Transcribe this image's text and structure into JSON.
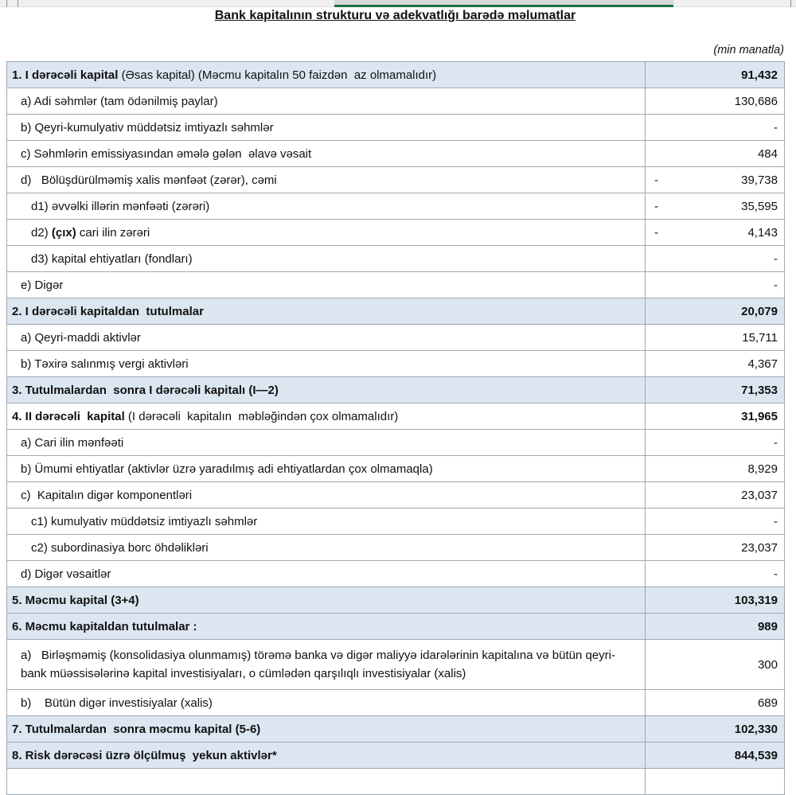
{
  "title": "Bank kapitalının strukturu və adekvatlığı barədə məlumatlar",
  "unit_note": "(min manatla)",
  "colors": {
    "section_row_bg": "#dce6f1",
    "table_border": "#9ea8b4",
    "excel_selection_green": "#1e7145",
    "header_strip_gray": "#f0f0f0"
  },
  "table": {
    "rows": [
      {
        "pre": "",
        "b": "1. I dərəcəli kapital",
        "post": " (Əsas kapital) (Məcmu kapitalın 50 faizdən  az olmamalıdır)",
        "value": "91,432",
        "neg": false,
        "indent": 0,
        "blue": true,
        "boldValue": true
      },
      {
        "pre": "a) Adi səhmlər (tam ödənilmiş paylar)",
        "b": "",
        "post": "",
        "value": "130,686",
        "neg": false,
        "indent": 1,
        "blue": false,
        "boldValue": false
      },
      {
        "pre": "b) Qeyri-kumulyativ müddətsiz imtiyazlı səhmlər",
        "b": "",
        "post": "",
        "value": "-",
        "neg": false,
        "indent": 1,
        "blue": false,
        "boldValue": false
      },
      {
        "pre": "c) Səhmlərin emissiyasından əmələ gələn  əlavə vəsait",
        "b": "",
        "post": "",
        "value": "484",
        "neg": false,
        "indent": 1,
        "blue": false,
        "boldValue": false
      },
      {
        "pre": "d)   Bölüşdürülməmiş xalis mənfəət (zərər), cəmi",
        "b": "",
        "post": "",
        "value": "39,738",
        "neg": true,
        "indent": 1,
        "blue": false,
        "boldValue": false
      },
      {
        "pre": "d1) əvvəlki illərin mənfəəti (zərəri)",
        "b": "",
        "post": "",
        "value": "35,595",
        "neg": true,
        "indent": 2,
        "blue": false,
        "boldValue": false
      },
      {
        "pre": "d2) ",
        "b": "(çıx)",
        "post": " cari ilin zərəri",
        "value": "4,143",
        "neg": true,
        "indent": 2,
        "blue": false,
        "boldValue": false
      },
      {
        "pre": "d3) kapital ehtiyatları (fondları)",
        "b": "",
        "post": "",
        "value": "-",
        "neg": false,
        "indent": 2,
        "blue": false,
        "boldValue": false
      },
      {
        "pre": "e) Digər",
        "b": "",
        "post": "",
        "value": "-",
        "neg": false,
        "indent": 1,
        "blue": false,
        "boldValue": false
      },
      {
        "pre": "",
        "b": "2. I dərəcəli kapitaldan  tutulmalar",
        "post": "",
        "value": "20,079",
        "neg": false,
        "indent": 0,
        "blue": true,
        "boldValue": true
      },
      {
        "pre": "a) Qeyri-maddi aktivlər",
        "b": "",
        "post": "",
        "value": "15,711",
        "neg": false,
        "indent": 1,
        "blue": false,
        "boldValue": false
      },
      {
        "pre": "b) Təxirə salınmış vergi aktivləri",
        "b": "",
        "post": "",
        "value": "4,367",
        "neg": false,
        "indent": 1,
        "blue": false,
        "boldValue": false
      },
      {
        "pre": "",
        "b": "3. Tutulmalardan  sonra I dərəcəli kapitalı (I—2)",
        "post": "",
        "value": "71,353",
        "neg": false,
        "indent": 0,
        "blue": true,
        "boldValue": true
      },
      {
        "pre": "",
        "b": "4. II dərəcəli  kapital",
        "post": " (I dərəcəli  kapitalın  məbləğindən çox olmamalıdır)",
        "value": "31,965",
        "neg": false,
        "indent": 0,
        "blue": false,
        "boldValue": true
      },
      {
        "pre": "a) Cari ilin mənfəəti",
        "b": "",
        "post": "",
        "value": "-",
        "neg": false,
        "indent": 1,
        "blue": false,
        "boldValue": false
      },
      {
        "pre": "b) Ümumi ehtiyatlar (aktivlər üzrə yaradılmış adi ehtiyatlardan çox olmamaqla)",
        "b": "",
        "post": "",
        "value": "8,929",
        "neg": false,
        "indent": 1,
        "blue": false,
        "boldValue": false
      },
      {
        "pre": "c)  Kapitalın digər komponentləri",
        "b": "",
        "post": "",
        "value": "23,037",
        "neg": false,
        "indent": 1,
        "blue": false,
        "boldValue": false
      },
      {
        "pre": "c1) kumulyativ müddətsiz imtiyazlı səhmlər",
        "b": "",
        "post": "",
        "value": "-",
        "neg": false,
        "indent": 2,
        "blue": false,
        "boldValue": false
      },
      {
        "pre": "c2) subordinasiya borc öhdəlikləri",
        "b": "",
        "post": "",
        "value": "23,037",
        "neg": false,
        "indent": 2,
        "blue": false,
        "boldValue": false
      },
      {
        "pre": "d) Digər vəsaitlər",
        "b": "",
        "post": "",
        "value": "-",
        "neg": false,
        "indent": 1,
        "blue": false,
        "boldValue": false
      },
      {
        "pre": "",
        "b": "5. Məcmu kapital (3+4)",
        "post": "",
        "value": "103,319",
        "neg": false,
        "indent": 0,
        "blue": true,
        "boldValue": true
      },
      {
        "pre": "",
        "b": "6. Məcmu kapitaldan tutulmalar :",
        "post": "",
        "value": "989",
        "neg": false,
        "indent": 0,
        "blue": true,
        "boldValue": true
      },
      {
        "pre": "a)   Birləşməmiş (konsolidasiya olunmamış) törəmə banka və digər maliyyə idarələrinin kapitalına və bütün qeyri-bank müəssisələrinə kapital investisiyaları, o cümlədən qarşılıqlı investisiyalar (xalis)",
        "b": "",
        "post": "",
        "value": "300",
        "neg": false,
        "indent": 1,
        "blue": false,
        "boldValue": false,
        "tall": true
      },
      {
        "pre": "b)    Bütün digər investisiyalar (xalis)",
        "b": "",
        "post": "",
        "value": "689",
        "neg": false,
        "indent": 1,
        "blue": false,
        "boldValue": false
      },
      {
        "pre": "",
        "b": "7. Tutulmalardan  sonra məcmu kapital (5-6)",
        "post": "",
        "value": "102,330",
        "neg": false,
        "indent": 0,
        "blue": true,
        "boldValue": true
      },
      {
        "pre": "",
        "b": "8. Risk dərəcəsi üzrə ölçülmuş  yekun aktivlər*",
        "post": "",
        "value": "844,539",
        "neg": false,
        "indent": 0,
        "blue": true,
        "boldValue": true
      },
      {
        "pre": "",
        "b": "",
        "post": "",
        "value": "",
        "neg": false,
        "indent": 1,
        "blue": false,
        "boldValue": false
      }
    ]
  }
}
